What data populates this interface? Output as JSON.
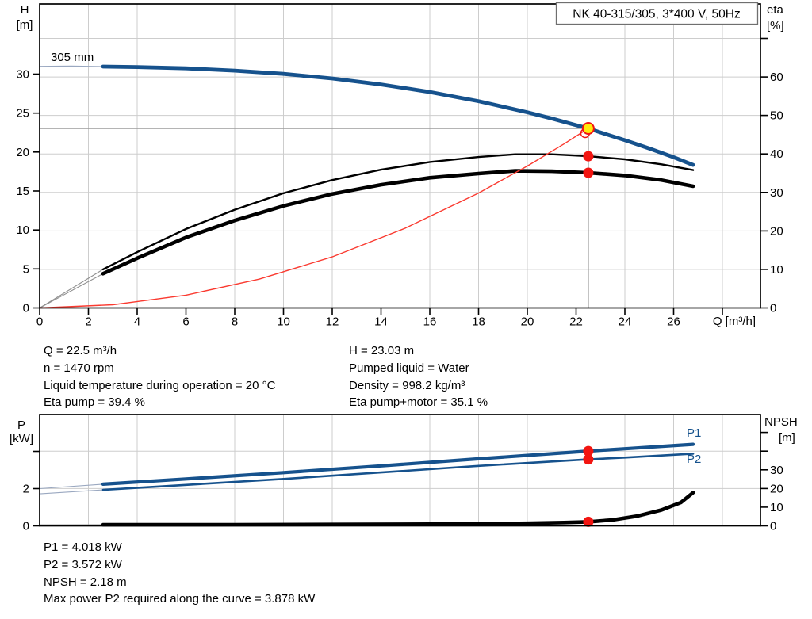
{
  "header": {
    "title_box": "NK 40-315/305, 3*400 V, 50Hz"
  },
  "colors": {
    "blue": "#16528d",
    "black": "#000000",
    "red_line": "#fa3a30",
    "dot_red": "#f21511",
    "duty_yellow": "#ffe90c",
    "grid": "#cdcdcd",
    "duty_line": "#9b9b9b",
    "ext_blue": "#9aa8c0",
    "ext_gray": "#909090",
    "title_border": "#6f6f6f"
  },
  "top_chart": {
    "y_left_1": "H",
    "y_left_2": "[m]",
    "y_right_1": "eta",
    "y_right_2": "[%]",
    "x_label": "Q [m³/h]",
    "impeller_label": "305 mm"
  },
  "bottom_chart": {
    "y_left_1": "P",
    "y_left_2": "[kW]",
    "y_right_1": "NPSH",
    "y_right_2": "[m]",
    "p1_label": "P1",
    "p2_label": "P2"
  },
  "info_top": {
    "left": [
      "Q = 22.5 m³/h",
      "n = 1470 rpm",
      "Liquid temperature during operation = 20 °C",
      "Eta pump = 39.4 %"
    ],
    "right": [
      "H = 23.03 m",
      "Pumped liquid = Water",
      "Density = 998.2 kg/m³",
      "Eta pump+motor = 35.1 %"
    ]
  },
  "info_bottom": [
    "P1 = 4.018 kW",
    "P2 = 3.572 kW",
    "NPSH = 2.18 m",
    "Max power P2 required along the curve = 3.878 kW"
  ],
  "chart_data": [
    {
      "id": "head",
      "type": "line",
      "title": "NK 40-315/305, 3*400 V, 50Hz",
      "xlabel": "Q [m³/h]",
      "ylabel_left": "H [m]",
      "ylabel_right": "eta [%]",
      "xlim": [
        0,
        29.6
      ],
      "ylim_left": [
        0,
        39
      ],
      "ylim_right": [
        0,
        79
      ],
      "grid_x": [
        2,
        4,
        6,
        8,
        10,
        12,
        14,
        16,
        18,
        20,
        22,
        24,
        26,
        28
      ],
      "grid_y_right": [
        10,
        20,
        30,
        40,
        50,
        60,
        70
      ],
      "x_ticks_labeled": [
        0,
        2,
        4,
        6,
        8,
        10,
        12,
        14,
        16,
        18,
        20,
        22,
        24,
        26
      ],
      "x_ticks_unlabeled": [
        28
      ],
      "y_ticks_left_labeled": [
        0,
        5,
        10,
        15,
        20,
        25,
        30
      ],
      "y_ticks_left_unlabeled": [],
      "y_ticks_right_labeled": [
        0,
        10,
        20,
        30,
        40,
        50,
        60
      ],
      "y_ticks_right_unlabeled": [
        70
      ],
      "series": [
        {
          "name": "h-curve-extension",
          "axis": "left",
          "color": "ext_blue",
          "width": 1.2,
          "x": [
            0,
            1.3,
            2.6
          ],
          "y": [
            31,
            31.03,
            30.97
          ]
        },
        {
          "name": "eta-pump-extension",
          "axis": "right",
          "color": "ext_gray",
          "width": 1.1,
          "x": [
            0,
            2.6
          ],
          "y": [
            0,
            10
          ]
        },
        {
          "name": "eta-pump-motor-extension",
          "axis": "right",
          "color": "ext_gray",
          "width": 1.1,
          "x": [
            0,
            2.6
          ],
          "y": [
            0,
            8.9
          ]
        },
        {
          "name": "h-curve-305mm",
          "axis": "left",
          "color": "blue",
          "width": 4.8,
          "x": [
            2.6,
            4,
            6,
            8,
            10,
            12,
            14,
            16,
            18,
            20,
            21,
            22,
            22.5,
            23,
            24,
            25,
            26,
            26.8
          ],
          "y": [
            30.97,
            30.91,
            30.74,
            30.45,
            30.03,
            29.44,
            28.67,
            27.7,
            26.52,
            25.1,
            24.31,
            23.45,
            23.03,
            22.52,
            21.52,
            20.46,
            19.33,
            18.35
          ]
        },
        {
          "name": "eta-pump",
          "axis": "right",
          "color": "black",
          "width": 2.4,
          "x": [
            2.6,
            4,
            6,
            8,
            10,
            12,
            14,
            16,
            18,
            19.5,
            21,
            22.5,
            24,
            25.5,
            26.8
          ],
          "y": [
            10,
            14.5,
            20.5,
            25.5,
            29.8,
            33.2,
            35.9,
            37.9,
            39.2,
            39.9,
            39.9,
            39.4,
            38.6,
            37.3,
            35.8
          ]
        },
        {
          "name": "eta-pump-motor",
          "axis": "right",
          "color": "black",
          "width": 4.6,
          "x": [
            2.6,
            4,
            6,
            8,
            10,
            12,
            14,
            16,
            18,
            19.5,
            21,
            22.5,
            24,
            25.5,
            26.8
          ],
          "y": [
            8.9,
            12.9,
            18.3,
            22.7,
            26.5,
            29.6,
            32,
            33.8,
            34.9,
            35.6,
            35.5,
            35.1,
            34.4,
            33.2,
            31.6
          ]
        },
        {
          "name": "system-curve",
          "axis": "left",
          "color": "red_line",
          "width": 1.4,
          "x": [
            0,
            3,
            6,
            9,
            12,
            15,
            18,
            20,
            21.5,
            22.5
          ],
          "y": [
            0,
            0.41,
            1.64,
            3.69,
            6.55,
            10.24,
            14.74,
            18.2,
            21.03,
            23.03
          ]
        }
      ],
      "duty_point": {
        "Q": 22.5,
        "connectors": true,
        "markers": [
          {
            "axis": "right",
            "value": 39.4,
            "style": "dot"
          },
          {
            "axis": "right",
            "value": 35.1,
            "style": "dot"
          },
          {
            "axis": "left",
            "value": 23.03,
            "style": "duty"
          }
        ]
      }
    },
    {
      "id": "power",
      "type": "line",
      "title": "",
      "xlabel": "",
      "ylabel_left": "P [kW]",
      "ylabel_right": "NPSH [m]",
      "xlim": [
        0,
        29.6
      ],
      "ylim_left": [
        0,
        6
      ],
      "ylim_right": [
        0,
        59.6
      ],
      "grid_x": [
        2,
        4,
        6,
        8,
        10,
        12,
        14,
        16,
        18,
        20,
        22,
        24,
        26,
        28
      ],
      "grid_y_right": [
        20,
        40
      ],
      "x_ticks_labeled": [],
      "x_ticks_unlabeled": [],
      "y_ticks_left_labeled": [
        0,
        2
      ],
      "y_ticks_left_unlabeled": [
        4
      ],
      "y_ticks_right_labeled": [
        0,
        10,
        20,
        30
      ],
      "y_ticks_right_unlabeled": [
        40,
        50
      ],
      "series": [
        {
          "name": "p1-extension",
          "axis": "left",
          "color": "ext_blue",
          "width": 1.1,
          "x": [
            0,
            2.6
          ],
          "y": [
            2.0,
            2.24
          ]
        },
        {
          "name": "p2-extension",
          "axis": "left",
          "color": "ext_blue",
          "width": 1.1,
          "x": [
            0,
            2.6
          ],
          "y": [
            1.72,
            1.93
          ]
        },
        {
          "name": "npsh-extension",
          "axis": "right",
          "color": "ext_gray",
          "width": 1.1,
          "x": [
            0,
            2.6
          ],
          "y": [
            0.55,
            0.6
          ]
        },
        {
          "name": "p1",
          "axis": "left",
          "color": "blue",
          "width": 4.2,
          "x": [
            2.6,
            6,
            10,
            14,
            18,
            22.5,
            24,
            26.8
          ],
          "y": [
            2.24,
            2.52,
            2.86,
            3.22,
            3.6,
            4.018,
            4.14,
            4.38
          ]
        },
        {
          "name": "p2",
          "axis": "left",
          "color": "blue",
          "width": 2.6,
          "x": [
            2.6,
            6,
            10,
            14,
            18,
            22.5,
            24,
            26.8
          ],
          "y": [
            1.93,
            2.2,
            2.52,
            2.87,
            3.22,
            3.572,
            3.67,
            3.878
          ]
        },
        {
          "name": "npsh",
          "axis": "right",
          "color": "black",
          "width": 4.6,
          "x": [
            2.6,
            8,
            12,
            16,
            18,
            20,
            21.5,
            22.5,
            23.5,
            24.5,
            25.5,
            26.3,
            26.8
          ],
          "y": [
            0.6,
            0.65,
            0.75,
            0.95,
            1.1,
            1.4,
            1.8,
            2.18,
            3.2,
            5.2,
            8.5,
            12.5,
            17.8
          ]
        }
      ],
      "duty_point": {
        "Q": 22.5,
        "connectors": false,
        "markers": [
          {
            "axis": "left",
            "value": 4.018,
            "style": "dot"
          },
          {
            "axis": "left",
            "value": 3.572,
            "style": "dot"
          },
          {
            "axis": "right",
            "value": 2.18,
            "style": "dot"
          }
        ]
      }
    }
  ]
}
